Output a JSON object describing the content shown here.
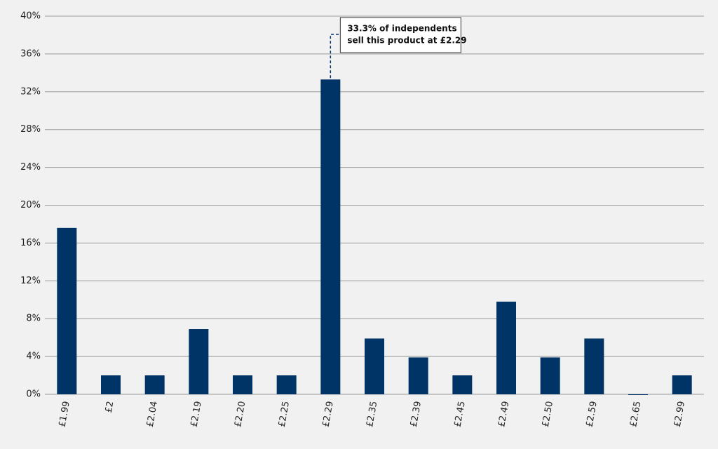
{
  "chart_data": {
    "type": "bar",
    "categories": [
      "£1.99",
      "£2",
      "£2.04",
      "£2.19",
      "£2.20",
      "£2.25",
      "£2.29",
      "£2.35",
      "£2.39",
      "£2.45",
      "£2.49",
      "£2.50",
      "£2.59",
      "£2.65",
      "£2.99"
    ],
    "values": [
      17.6,
      2,
      2,
      6.9,
      2,
      2,
      33.3,
      5.9,
      3.9,
      2,
      9.8,
      3.9,
      5.9,
      0,
      2
    ],
    "color": "#003366",
    "ylim": [
      0,
      40
    ],
    "yticks": [
      {
        "value": 0,
        "label": "0%"
      },
      {
        "value": 4,
        "label": "4%"
      },
      {
        "value": 8,
        "label": "8%"
      },
      {
        "value": 12,
        "label": "12%"
      },
      {
        "value": 16,
        "label": "16%"
      },
      {
        "value": 20,
        "label": "20%"
      },
      {
        "value": 24,
        "label": "24%"
      },
      {
        "value": 28,
        "label": "28%"
      },
      {
        "value": 32,
        "label": "32%"
      },
      {
        "value": 36,
        "label": "36%"
      },
      {
        "value": 40,
        "label": "40%"
      }
    ],
    "grid": true,
    "annotation": [
      "33.3% of independents",
      "sell this product at £2.29"
    ]
  }
}
